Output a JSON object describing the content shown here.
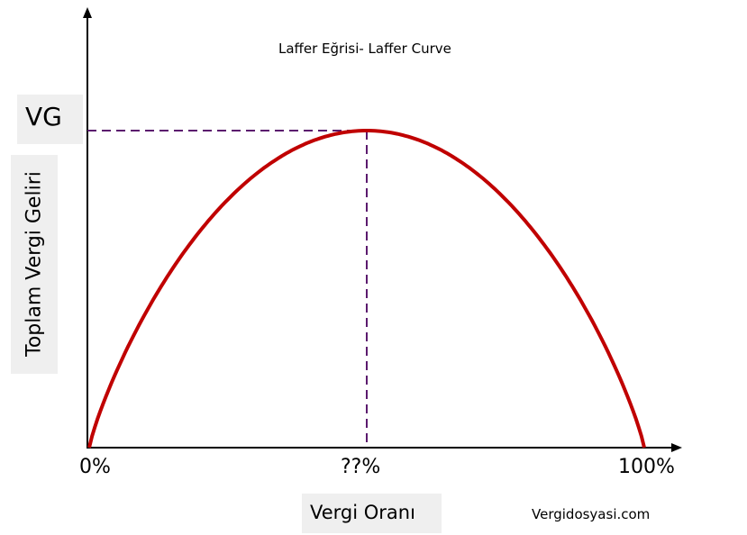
{
  "chart_data": {
    "type": "line",
    "title": "Laffer Eğrisi- Laffer Curve",
    "xlabel": "Vergi Oranı",
    "ylabel": "Toplam Vergi Geliri",
    "x_tick_labels": [
      "0%",
      "??%",
      "100%"
    ],
    "y_tick_labels": [
      "VG"
    ],
    "xlim": [
      0,
      100
    ],
    "ylim": [
      0,
      1
    ],
    "peak": {
      "x": 50,
      "y": 1
    },
    "series": [
      {
        "name": "Laffer Curve",
        "color": "#c00000",
        "shape": "concave-hump",
        "x": [
          0,
          50,
          100
        ],
        "y": [
          0,
          1,
          0
        ]
      }
    ],
    "reference_lines_color": "#5b1a6e",
    "grid": false,
    "legend": "none",
    "watermark": "Vergidosyasi.com"
  }
}
